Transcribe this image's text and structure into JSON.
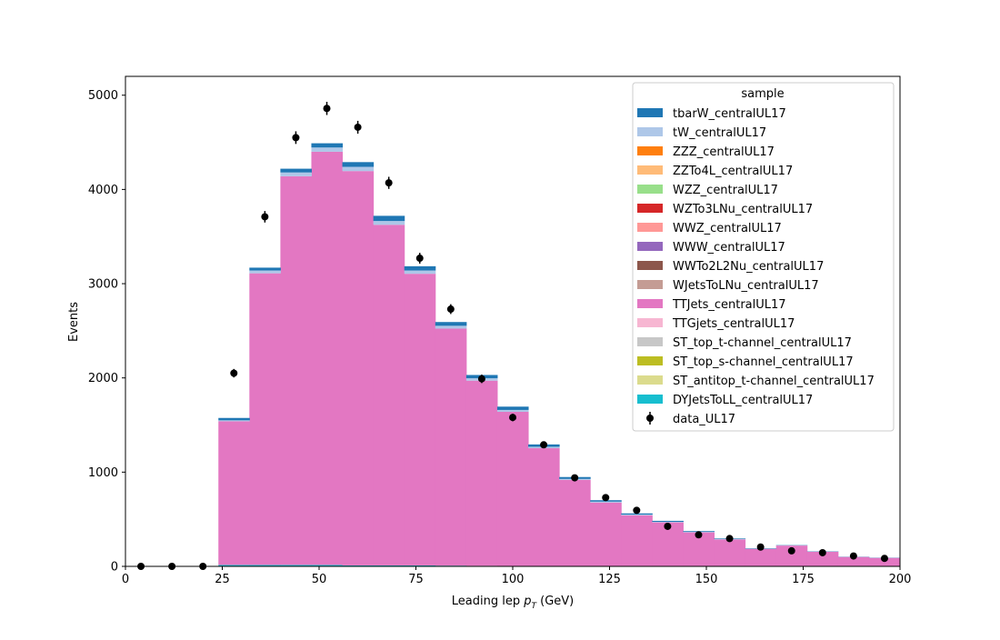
{
  "chart_data": {
    "type": "bar",
    "stacked": true,
    "xlabel_main": "Leading lep",
    "xlabel_math": "p",
    "xlabel_sub": "T",
    "xlabel_unit": "(GeV)",
    "ylabel": "Events",
    "xlim": [
      0,
      200
    ],
    "ylim": [
      0,
      5200
    ],
    "xticks": [
      0,
      25,
      50,
      75,
      100,
      125,
      150,
      175,
      200
    ],
    "yticks": [
      0,
      1000,
      2000,
      3000,
      4000,
      5000
    ],
    "bin_edges": [
      0,
      8,
      16,
      24,
      32,
      40,
      48,
      56,
      64,
      72,
      80,
      88,
      96,
      104,
      112,
      120,
      128,
      136,
      144,
      152,
      160,
      168,
      176,
      184,
      192,
      200
    ],
    "legend_title": "sample",
    "legend_position": "top-right",
    "series": [
      {
        "name": "DYJetsToLL_centralUL17",
        "color": "#17becf",
        "values": [
          0,
          0,
          0,
          15,
          15,
          15,
          15,
          10,
          10,
          10,
          8,
          6,
          5,
          4,
          3,
          2,
          2,
          2,
          1,
          1,
          1,
          1,
          0,
          0,
          0
        ]
      },
      {
        "name": "ST_antitop_t-channel_centralUL17",
        "color": "#dbdb8d",
        "values": [
          0,
          0,
          0,
          0,
          0,
          0,
          0,
          0,
          0,
          0,
          0,
          0,
          0,
          0,
          0,
          0,
          0,
          0,
          0,
          0,
          0,
          0,
          0,
          0,
          0
        ]
      },
      {
        "name": "ST_top_s-channel_centralUL17",
        "color": "#bcbd22",
        "values": [
          0,
          0,
          0,
          0,
          0,
          0,
          0,
          0,
          0,
          0,
          0,
          0,
          0,
          0,
          0,
          0,
          0,
          0,
          0,
          0,
          0,
          0,
          0,
          0,
          0
        ]
      },
      {
        "name": "ST_top_t-channel_centralUL17",
        "color": "#c7c7c7",
        "values": [
          0,
          0,
          0,
          0,
          0,
          0,
          0,
          0,
          0,
          0,
          0,
          0,
          0,
          0,
          0,
          0,
          0,
          0,
          0,
          0,
          0,
          0,
          0,
          0,
          0
        ]
      },
      {
        "name": "TTGjets_centralUL17",
        "color": "#f7b6d2",
        "values": [
          0,
          0,
          0,
          0,
          0,
          0,
          0,
          0,
          0,
          0,
          0,
          0,
          0,
          0,
          0,
          0,
          0,
          0,
          0,
          0,
          0,
          0,
          0,
          0,
          0
        ]
      },
      {
        "name": "TTJets_centralUL17",
        "color": "#e377c2",
        "values": [
          0,
          0,
          0,
          1525,
          3095,
          4125,
          4385,
          4185,
          3615,
          3095,
          2515,
          1965,
          1635,
          1250,
          915,
          675,
          540,
          465,
          360,
          285,
          185,
          220,
          155,
          100,
          90
        ]
      },
      {
        "name": "WJetsToLNu_centralUL17",
        "color": "#c49c94",
        "values": [
          0,
          0,
          0,
          0,
          0,
          0,
          0,
          0,
          0,
          0,
          0,
          0,
          0,
          0,
          0,
          0,
          0,
          0,
          0,
          0,
          0,
          0,
          0,
          0,
          0
        ]
      },
      {
        "name": "WWTo2L2Nu_centralUL17",
        "color": "#8c564b",
        "values": [
          0,
          0,
          0,
          0,
          0,
          0,
          0,
          0,
          0,
          0,
          0,
          0,
          0,
          0,
          0,
          0,
          0,
          0,
          0,
          0,
          0,
          0,
          0,
          0,
          0
        ]
      },
      {
        "name": "WWW_centralUL17",
        "color": "#9467bd",
        "values": [
          0,
          0,
          0,
          0,
          0,
          0,
          0,
          0,
          0,
          0,
          0,
          0,
          0,
          0,
          0,
          0,
          0,
          0,
          0,
          0,
          0,
          0,
          0,
          0,
          0
        ]
      },
      {
        "name": "WWZ_centralUL17",
        "color": "#ff9896",
        "values": [
          0,
          0,
          0,
          0,
          0,
          0,
          0,
          0,
          0,
          0,
          0,
          0,
          0,
          0,
          0,
          0,
          0,
          0,
          0,
          0,
          0,
          0,
          0,
          0,
          0
        ]
      },
      {
        "name": "WZTo3LNu_centralUL17",
        "color": "#d62728",
        "values": [
          0,
          0,
          0,
          0,
          0,
          0,
          0,
          0,
          0,
          0,
          0,
          0,
          0,
          0,
          0,
          0,
          0,
          0,
          0,
          0,
          0,
          0,
          0,
          0,
          0
        ]
      },
      {
        "name": "WZZ_centralUL17",
        "color": "#98df8a",
        "values": [
          0,
          0,
          0,
          0,
          0,
          0,
          0,
          0,
          0,
          0,
          0,
          0,
          0,
          0,
          0,
          0,
          0,
          0,
          0,
          0,
          0,
          0,
          0,
          0,
          0
        ]
      },
      {
        "name": "ZZTo4L_centralUL17",
        "color": "#ffbb78",
        "values": [
          0,
          0,
          0,
          0,
          0,
          0,
          0,
          0,
          0,
          0,
          0,
          0,
          0,
          0,
          0,
          0,
          0,
          0,
          0,
          0,
          0,
          0,
          0,
          0,
          0
        ]
      },
      {
        "name": "ZZZ_centralUL17",
        "color": "#ff7f0e",
        "values": [
          0,
          0,
          0,
          0,
          0,
          0,
          0,
          0,
          0,
          0,
          0,
          0,
          0,
          0,
          0,
          0,
          0,
          0,
          0,
          0,
          0,
          0,
          0,
          0,
          0
        ]
      },
      {
        "name": "tW_centralUL17",
        "color": "#aec7e8",
        "values": [
          0,
          0,
          0,
          10,
          30,
          40,
          45,
          45,
          40,
          35,
          30,
          25,
          20,
          15,
          10,
          10,
          8,
          6,
          5,
          4,
          3,
          2,
          2,
          1,
          1
        ]
      },
      {
        "name": "tbarW_centralUL17",
        "color": "#1f77b4",
        "values": [
          0,
          0,
          0,
          25,
          30,
          40,
          45,
          50,
          55,
          45,
          40,
          35,
          35,
          25,
          20,
          15,
          12,
          10,
          8,
          6,
          4,
          3,
          3,
          2,
          2
        ]
      }
    ],
    "data": {
      "name": "data_UL17",
      "x": [
        4,
        12,
        20,
        28,
        36,
        44,
        52,
        60,
        68,
        76,
        84,
        92,
        100,
        108,
        116,
        124,
        132,
        140,
        148,
        156,
        164,
        172,
        180,
        188,
        196
      ],
      "y": [
        0,
        0,
        0,
        2050,
        3710,
        4550,
        4860,
        4660,
        4070,
        3270,
        2730,
        1990,
        1580,
        1290,
        940,
        730,
        595,
        425,
        335,
        295,
        205,
        165,
        145,
        110,
        85
      ],
      "yerr": [
        0,
        0,
        0,
        45,
        61,
        67,
        70,
        68,
        64,
        57,
        52,
        45,
        40,
        36,
        31,
        27,
        24,
        21,
        18,
        17,
        14,
        13,
        12,
        10,
        9
      ]
    }
  }
}
